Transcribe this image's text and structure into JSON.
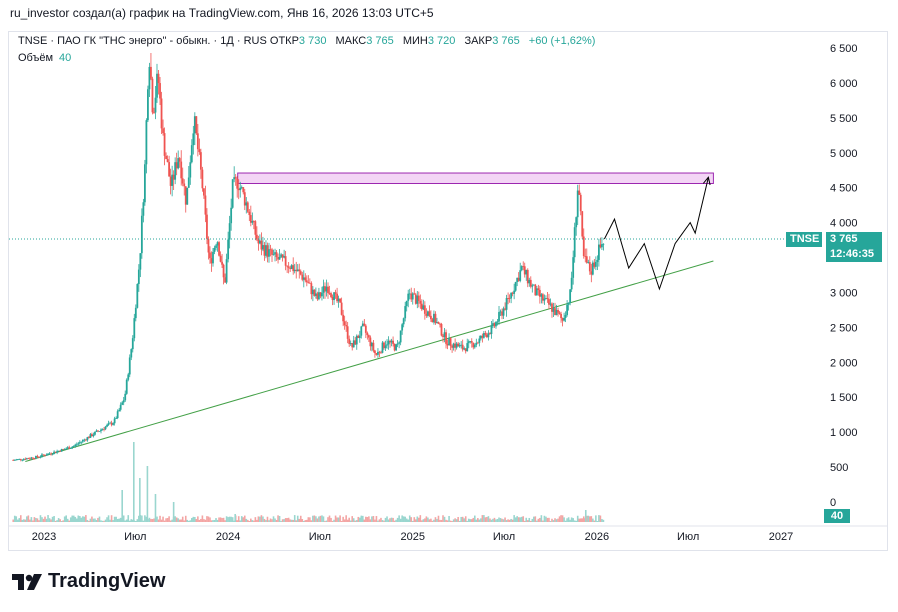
{
  "header": {
    "text": "ru_investor создал(а) график на TradingView.com, Янв 16, 2026 13:03 UTC+5"
  },
  "legend": {
    "title": "TNSE · ПАО ГК \"ТНС энерго\" - обыкн. · 1Д · RUS",
    "open_label": "ОТКР",
    "open": "3 730",
    "high_label": "МАКС",
    "high": "3 765",
    "low_label": "МИН",
    "low": "3 720",
    "close_label": "ЗАКР",
    "close": "3 765",
    "change": "+60 (+1,62%)",
    "volume_label": "Объём",
    "volume": "40"
  },
  "price_tag": {
    "symbol": "TNSE",
    "price": "3 765",
    "countdown": "12:46:35"
  },
  "volume_tag": "40",
  "brand": "TradingView",
  "colors": {
    "up": "#26a69a",
    "down": "#ef5350",
    "zone_fill": "#f3d5f5",
    "zone_stroke": "#9c27b0",
    "trendline": "#43a047",
    "projection": "#000000",
    "price_line": "#26a69a"
  },
  "chart_data": {
    "type": "candlestick",
    "y_ticks": [
      "6 500",
      "6 000",
      "5 500",
      "5 000",
      "4 500",
      "4 000",
      "3 500",
      "3 000",
      "2 500",
      "2 000",
      "1 500",
      "1 000",
      "500",
      "0"
    ],
    "y_tick_values": [
      6500,
      6000,
      5500,
      5000,
      4500,
      4000,
      3500,
      3000,
      2500,
      2000,
      1500,
      1000,
      500,
      0
    ],
    "x_ticks": [
      "2023",
      "Июл",
      "2024",
      "Июл",
      "2025",
      "Июл",
      "2026",
      "Июл",
      "2027"
    ],
    "x_tick_dates": [
      "2023-01-01",
      "2023-07-01",
      "2024-01-01",
      "2024-07-01",
      "2025-01-01",
      "2025-07-01",
      "2026-01-01",
      "2026-07-01",
      "2027-01-01"
    ],
    "price_path": [
      [
        "2022-11-01",
        600
      ],
      [
        "2022-12-15",
        640
      ],
      [
        "2023-01-15",
        700
      ],
      [
        "2023-03-01",
        800
      ],
      [
        "2023-04-15",
        1000
      ],
      [
        "2023-05-20",
        1150
      ],
      [
        "2023-06-10",
        1500
      ],
      [
        "2023-06-25",
        2300
      ],
      [
        "2023-07-10",
        3500
      ],
      [
        "2023-07-20",
        4800
      ],
      [
        "2023-07-28",
        6500
      ],
      [
        "2023-08-05",
        5600
      ],
      [
        "2023-08-15",
        6100
      ],
      [
        "2023-08-25",
        5200
      ],
      [
        "2023-09-10",
        4500
      ],
      [
        "2023-09-25",
        5000
      ],
      [
        "2023-10-10",
        4300
      ],
      [
        "2023-10-25",
        5500
      ],
      [
        "2023-11-10",
        4600
      ],
      [
        "2023-11-25",
        3400
      ],
      [
        "2023-12-10",
        3800
      ],
      [
        "2023-12-25",
        3100
      ],
      [
        "2024-01-10",
        4500
      ],
      [
        "2024-01-20",
        4600
      ],
      [
        "2024-02-05",
        4300
      ],
      [
        "2024-03-01",
        3700
      ],
      [
        "2024-04-01",
        3500
      ],
      [
        "2024-05-01",
        3400
      ],
      [
        "2024-06-01",
        3200
      ],
      [
        "2024-06-25",
        2900
      ],
      [
        "2024-07-15",
        3100
      ],
      [
        "2024-08-10",
        2800
      ],
      [
        "2024-09-01",
        2200
      ],
      [
        "2024-09-25",
        2500
      ],
      [
        "2024-10-20",
        2100
      ],
      [
        "2024-11-10",
        2300
      ],
      [
        "2024-12-01",
        2200
      ],
      [
        "2024-12-25",
        3000
      ],
      [
        "2025-01-20",
        2800
      ],
      [
        "2025-02-15",
        2600
      ],
      [
        "2025-03-10",
        2300
      ],
      [
        "2025-04-10",
        2200
      ],
      [
        "2025-05-10",
        2300
      ],
      [
        "2025-06-10",
        2500
      ],
      [
        "2025-07-10",
        2900
      ],
      [
        "2025-08-05",
        3350
      ],
      [
        "2025-09-01",
        3000
      ],
      [
        "2025-10-01",
        2800
      ],
      [
        "2025-10-25",
        2600
      ],
      [
        "2025-11-10",
        3000
      ],
      [
        "2025-11-25",
        4600
      ],
      [
        "2025-12-05",
        3500
      ],
      [
        "2025-12-20",
        3300
      ],
      [
        "2026-01-05",
        3600
      ],
      [
        "2026-01-16",
        3765
      ]
    ],
    "volume_spikes": [
      [
        "2023-06-28",
        1
      ],
      [
        "2023-07-10",
        0.55
      ],
      [
        "2023-07-25",
        0.7
      ],
      [
        "2023-08-10",
        0.35
      ],
      [
        "2023-06-05",
        0.4
      ],
      [
        "2023-09-15",
        0.25
      ],
      [
        "2024-01-15",
        0.1
      ],
      [
        "2025-12-10",
        0.15
      ]
    ],
    "resistance_zone": {
      "from": "2024-01-20",
      "to": "2026-08-20",
      "low": 4560,
      "high": 4710
    },
    "trendline": {
      "from": [
        "2022-11-25",
        580
      ],
      "to": [
        "2026-08-20",
        3450
      ]
    },
    "projection": [
      [
        "2026-01-16",
        3765
      ],
      [
        "2026-02-05",
        4050
      ],
      [
        "2026-03-05",
        3350
      ],
      [
        "2026-04-05",
        3700
      ],
      [
        "2026-05-05",
        3050
      ],
      [
        "2026-06-05",
        3700
      ],
      [
        "2026-07-05",
        4000
      ],
      [
        "2026-07-15",
        3850
      ],
      [
        "2026-08-10",
        4650
      ]
    ],
    "last_price": 3765
  }
}
